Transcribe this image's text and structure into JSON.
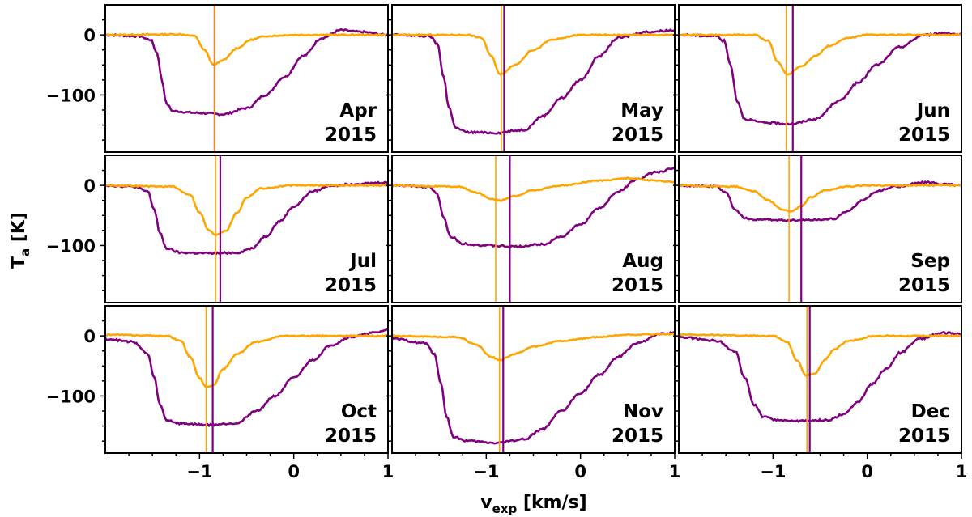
{
  "chart_data": {
    "type": "line",
    "layout": "3x3 grid of panels, shared axes",
    "xlabel_main": "v",
    "xlabel_sub": "exp",
    "xlabel_unit": " [km/s]",
    "ylabel_main": "T",
    "ylabel_sub": "a",
    "ylabel_unit": " [K]",
    "xlim": [
      -2.0,
      1.0
    ],
    "ylim": [
      -195,
      50
    ],
    "xticks": [
      -1,
      0,
      1
    ],
    "xtick_labels": [
      "−1",
      "0",
      "1"
    ],
    "yticks": [
      0,
      -100
    ],
    "ytick_labels": [
      "0",
      "−100"
    ],
    "series_colors": {
      "orange": "#ffa500",
      "purple": "#800080"
    },
    "panels": [
      {
        "month": "Apr",
        "year": "2015",
        "purple": [
          [
            -2.0,
            0
          ],
          [
            -1.65,
            -2
          ],
          [
            -1.52,
            -8
          ],
          [
            -1.45,
            -30
          ],
          [
            -1.4,
            -75
          ],
          [
            -1.35,
            -115
          ],
          [
            -1.28,
            -127
          ],
          [
            -1.0,
            -130
          ],
          [
            -0.75,
            -132
          ],
          [
            -0.5,
            -122
          ],
          [
            -0.3,
            -100
          ],
          [
            -0.1,
            -70
          ],
          [
            0.1,
            -35
          ],
          [
            0.3,
            -5
          ],
          [
            0.5,
            8
          ],
          [
            0.7,
            5
          ],
          [
            1.0,
            0
          ]
        ],
        "orange": [
          [
            -2.0,
            0
          ],
          [
            -1.2,
            1
          ],
          [
            -1.05,
            -2
          ],
          [
            -0.95,
            -25
          ],
          [
            -0.85,
            -50
          ],
          [
            -0.75,
            -42
          ],
          [
            -0.6,
            -22
          ],
          [
            -0.45,
            -8
          ],
          [
            -0.3,
            -2
          ],
          [
            0.0,
            0
          ],
          [
            1.0,
            0
          ]
        ],
        "orange_vline": -0.84,
        "purple_vline": -0.84
      },
      {
        "month": "May",
        "year": "2015",
        "purple": [
          [
            -2.0,
            0
          ],
          [
            -1.6,
            -2
          ],
          [
            -1.52,
            -15
          ],
          [
            -1.45,
            -70
          ],
          [
            -1.4,
            -120
          ],
          [
            -1.32,
            -155
          ],
          [
            -1.2,
            -162
          ],
          [
            -0.9,
            -163
          ],
          [
            -0.6,
            -158
          ],
          [
            -0.4,
            -135
          ],
          [
            -0.2,
            -105
          ],
          [
            0.0,
            -75
          ],
          [
            0.2,
            -35
          ],
          [
            0.4,
            -5
          ],
          [
            0.7,
            5
          ],
          [
            1.0,
            8
          ]
        ],
        "orange": [
          [
            -2.0,
            0
          ],
          [
            -1.2,
            0
          ],
          [
            -1.05,
            -5
          ],
          [
            -0.95,
            -35
          ],
          [
            -0.85,
            -66
          ],
          [
            -0.7,
            -50
          ],
          [
            -0.5,
            -25
          ],
          [
            -0.3,
            -8
          ],
          [
            0.0,
            0
          ],
          [
            1.0,
            0
          ]
        ],
        "orange_vline": -0.84,
        "purple_vline": -0.81
      },
      {
        "month": "Jun",
        "year": "2015",
        "purple": [
          [
            -2.0,
            0
          ],
          [
            -1.6,
            -2
          ],
          [
            -1.52,
            -10
          ],
          [
            -1.45,
            -50
          ],
          [
            -1.38,
            -110
          ],
          [
            -1.3,
            -140
          ],
          [
            -1.1,
            -146
          ],
          [
            -0.8,
            -148
          ],
          [
            -0.55,
            -140
          ],
          [
            -0.3,
            -110
          ],
          [
            -0.1,
            -80
          ],
          [
            0.1,
            -50
          ],
          [
            0.35,
            -20
          ],
          [
            0.6,
            0
          ],
          [
            0.85,
            3
          ],
          [
            1.0,
            0
          ]
        ],
        "orange": [
          [
            -2.0,
            0
          ],
          [
            -1.2,
            0
          ],
          [
            -1.05,
            -10
          ],
          [
            -0.95,
            -45
          ],
          [
            -0.85,
            -66
          ],
          [
            -0.7,
            -52
          ],
          [
            -0.55,
            -35
          ],
          [
            -0.4,
            -18
          ],
          [
            -0.2,
            -5
          ],
          [
            0.0,
            0
          ],
          [
            1.0,
            0
          ]
        ],
        "orange_vline": -0.86,
        "purple_vline": -0.79
      },
      {
        "month": "Jul",
        "year": "2015",
        "purple": [
          [
            -2.0,
            0
          ],
          [
            -1.7,
            -2
          ],
          [
            -1.55,
            -10
          ],
          [
            -1.48,
            -40
          ],
          [
            -1.42,
            -80
          ],
          [
            -1.35,
            -105
          ],
          [
            -1.2,
            -112
          ],
          [
            -0.9,
            -113
          ],
          [
            -0.6,
            -112
          ],
          [
            -0.45,
            -105
          ],
          [
            -0.3,
            -85
          ],
          [
            -0.15,
            -60
          ],
          [
            0.0,
            -35
          ],
          [
            0.2,
            -10
          ],
          [
            0.4,
            0
          ],
          [
            0.7,
            3
          ],
          [
            1.0,
            5
          ]
        ],
        "orange": [
          [
            -2.0,
            0
          ],
          [
            -1.3,
            -2
          ],
          [
            -1.1,
            -15
          ],
          [
            -1.0,
            -45
          ],
          [
            -0.9,
            -75
          ],
          [
            -0.83,
            -82
          ],
          [
            -0.72,
            -75
          ],
          [
            -0.6,
            -45
          ],
          [
            -0.5,
            -20
          ],
          [
            -0.35,
            -5
          ],
          [
            0.0,
            0
          ],
          [
            1.0,
            0
          ]
        ],
        "orange_vline": -0.83,
        "purple_vline": -0.78
      },
      {
        "month": "Aug",
        "year": "2015",
        "purple": [
          [
            -2.0,
            0
          ],
          [
            -1.6,
            -2
          ],
          [
            -1.52,
            -15
          ],
          [
            -1.45,
            -55
          ],
          [
            -1.38,
            -85
          ],
          [
            -1.25,
            -97
          ],
          [
            -1.0,
            -100
          ],
          [
            -0.7,
            -102
          ],
          [
            -0.4,
            -98
          ],
          [
            -0.2,
            -85
          ],
          [
            0.0,
            -65
          ],
          [
            0.2,
            -38
          ],
          [
            0.4,
            -10
          ],
          [
            0.6,
            10
          ],
          [
            0.8,
            22
          ],
          [
            1.0,
            28
          ]
        ],
        "orange": [
          [
            -2.0,
            0
          ],
          [
            -1.3,
            -2
          ],
          [
            -1.1,
            -12
          ],
          [
            -0.95,
            -22
          ],
          [
            -0.85,
            -25
          ],
          [
            -0.7,
            -18
          ],
          [
            -0.5,
            -8
          ],
          [
            -0.2,
            0
          ],
          [
            0.2,
            8
          ],
          [
            0.5,
            12
          ],
          [
            0.8,
            8
          ],
          [
            1.0,
            5
          ]
        ],
        "orange_vline": -0.9,
        "purple_vline": -0.75
      },
      {
        "month": "Sep",
        "year": "2015",
        "purple": [
          [
            -2.0,
            0
          ],
          [
            -1.6,
            -2
          ],
          [
            -1.5,
            -12
          ],
          [
            -1.4,
            -40
          ],
          [
            -1.3,
            -55
          ],
          [
            -1.15,
            -57
          ],
          [
            -0.8,
            -58
          ],
          [
            -0.5,
            -57
          ],
          [
            -0.35,
            -55
          ],
          [
            -0.2,
            -42
          ],
          [
            -0.05,
            -25
          ],
          [
            0.1,
            -10
          ],
          [
            0.3,
            -2
          ],
          [
            0.6,
            5
          ],
          [
            0.85,
            2
          ],
          [
            1.0,
            0
          ]
        ],
        "orange": [
          [
            -2.0,
            0
          ],
          [
            -1.4,
            -2
          ],
          [
            -1.2,
            -10
          ],
          [
            -1.05,
            -25
          ],
          [
            -0.9,
            -40
          ],
          [
            -0.82,
            -44
          ],
          [
            -0.7,
            -35
          ],
          [
            -0.6,
            -20
          ],
          [
            -0.45,
            -8
          ],
          [
            -0.2,
            -2
          ],
          [
            0.0,
            0
          ],
          [
            1.0,
            0
          ]
        ],
        "orange_vline": -0.83,
        "purple_vline": -0.7
      },
      {
        "month": "Oct",
        "year": "2015",
        "purple": [
          [
            -2.0,
            -5
          ],
          [
            -1.7,
            -10
          ],
          [
            -1.55,
            -30
          ],
          [
            -1.48,
            -70
          ],
          [
            -1.42,
            -115
          ],
          [
            -1.35,
            -140
          ],
          [
            -1.2,
            -146
          ],
          [
            -0.9,
            -148
          ],
          [
            -0.6,
            -145
          ],
          [
            -0.4,
            -125
          ],
          [
            -0.2,
            -100
          ],
          [
            0.0,
            -70
          ],
          [
            0.2,
            -40
          ],
          [
            0.4,
            -15
          ],
          [
            0.6,
            -2
          ],
          [
            0.85,
            5
          ],
          [
            1.0,
            10
          ]
        ],
        "orange": [
          [
            -2.0,
            2
          ],
          [
            -1.35,
            0
          ],
          [
            -1.2,
            -8
          ],
          [
            -1.1,
            -35
          ],
          [
            -1.0,
            -70
          ],
          [
            -0.93,
            -85
          ],
          [
            -0.85,
            -82
          ],
          [
            -0.75,
            -55
          ],
          [
            -0.6,
            -30
          ],
          [
            -0.4,
            -10
          ],
          [
            -0.1,
            0
          ],
          [
            1.0,
            0
          ]
        ],
        "orange_vline": -0.93,
        "purple_vline": -0.86
      },
      {
        "month": "Nov",
        "year": "2015",
        "purple": [
          [
            -2.0,
            -5
          ],
          [
            -1.65,
            -12
          ],
          [
            -1.55,
            -30
          ],
          [
            -1.48,
            -80
          ],
          [
            -1.42,
            -135
          ],
          [
            -1.35,
            -168
          ],
          [
            -1.2,
            -175
          ],
          [
            -0.9,
            -178
          ],
          [
            -0.6,
            -172
          ],
          [
            -0.4,
            -155
          ],
          [
            -0.2,
            -125
          ],
          [
            0.0,
            -95
          ],
          [
            0.2,
            -65
          ],
          [
            0.4,
            -35
          ],
          [
            0.6,
            -12
          ],
          [
            0.85,
            3
          ],
          [
            1.0,
            5
          ]
        ],
        "orange": [
          [
            -2.0,
            0
          ],
          [
            -1.3,
            -2
          ],
          [
            -1.1,
            -15
          ],
          [
            -0.95,
            -35
          ],
          [
            -0.85,
            -40
          ],
          [
            -0.7,
            -30
          ],
          [
            -0.5,
            -18
          ],
          [
            -0.2,
            -8
          ],
          [
            0.2,
            -2
          ],
          [
            0.5,
            2
          ],
          [
            1.0,
            3
          ]
        ],
        "orange_vline": -0.86,
        "purple_vline": -0.82
      },
      {
        "month": "Dec",
        "year": "2015",
        "purple": [
          [
            -2.0,
            -2
          ],
          [
            -1.6,
            -8
          ],
          [
            -1.4,
            -25
          ],
          [
            -1.3,
            -70
          ],
          [
            -1.2,
            -115
          ],
          [
            -1.1,
            -135
          ],
          [
            -0.95,
            -140
          ],
          [
            -0.7,
            -142
          ],
          [
            -0.4,
            -140
          ],
          [
            -0.25,
            -130
          ],
          [
            -0.1,
            -110
          ],
          [
            0.05,
            -80
          ],
          [
            0.2,
            -55
          ],
          [
            0.35,
            -28
          ],
          [
            0.55,
            -5
          ],
          [
            0.8,
            5
          ],
          [
            1.0,
            3
          ]
        ],
        "orange": [
          [
            -2.0,
            2
          ],
          [
            -1.0,
            0
          ],
          [
            -0.85,
            -10
          ],
          [
            -0.75,
            -40
          ],
          [
            -0.65,
            -66
          ],
          [
            -0.55,
            -62
          ],
          [
            -0.45,
            -40
          ],
          [
            -0.35,
            -22
          ],
          [
            -0.2,
            -8
          ],
          [
            0.1,
            0
          ],
          [
            1.0,
            0
          ]
        ],
        "orange_vline": -0.64,
        "purple_vline": -0.61
      }
    ]
  }
}
